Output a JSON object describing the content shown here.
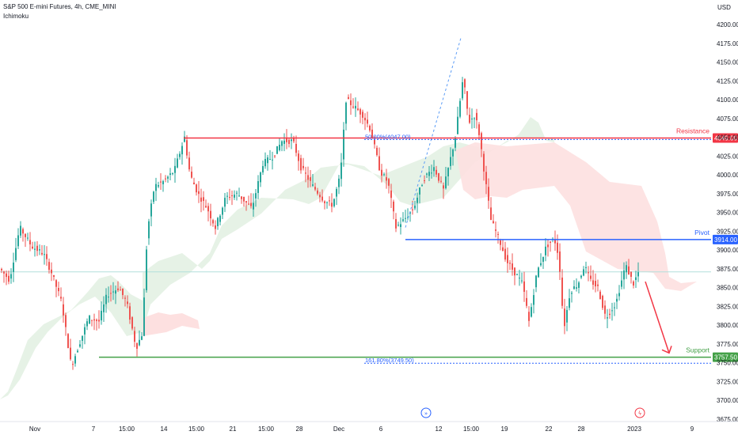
{
  "header": {
    "title": "S&P 500 E-mini Futures, 4h, CME_MINI",
    "indicator": "Ichimoku"
  },
  "chart_data": {
    "type": "candlestick",
    "currency": "USD",
    "ylim": [
      3675,
      4200
    ],
    "y_ticks": [
      3675,
      3700,
      3725,
      3750,
      3775,
      3800,
      3825,
      3850,
      3875,
      3900,
      3925,
      3950,
      3975,
      4000,
      4025,
      4050,
      4075,
      4100,
      4125,
      4150,
      4175,
      4200
    ],
    "y_tick_labels": [
      "3675.00",
      "3700.00",
      "3725.00",
      "3750.00",
      "3775.00",
      "3800.00",
      "3825.00",
      "3850.00",
      "3875.00",
      "3900.00",
      "3925.00",
      "3950.00",
      "3975.00",
      "4000.00",
      "4025.00",
      "4050.00",
      "4075.00",
      "4100.00",
      "4125.00",
      "4150.00",
      "4175.00",
      "4200.00"
    ],
    "x_tick_labels": [
      "Nov",
      "7",
      "15:00",
      "14",
      "15:00",
      "21",
      "15:00",
      "28",
      "Dec",
      "6",
      "12",
      "15:00",
      "19",
      "22",
      "28",
      "2023",
      "9"
    ],
    "levels": [
      {
        "name": "Resistance",
        "value": 4049.0,
        "label": "4049.00",
        "color": "#f23645"
      },
      {
        "name": "Pivot",
        "value": 3914.0,
        "label": "3914.00",
        "color": "#2962ff"
      },
      {
        "name": "Support",
        "value": 3757.5,
        "label": "3757.50",
        "color": "#43a047"
      }
    ],
    "fib_labels": [
      {
        "text": "50.00%(4047.00)",
        "value": 4047.0,
        "color": "#2962ff"
      },
      {
        "text": "161.80%(3749.50)",
        "value": 3749.5,
        "color": "#2962ff"
      }
    ],
    "last_price": 3871,
    "projection_target": 3763,
    "colors": {
      "up": "#26a69a",
      "down": "#ef5350",
      "cloud_bull": "#e3f1e3",
      "cloud_bear": "#fde0e0",
      "bg": "#ffffff"
    },
    "icons": [
      "forward-arrows-icon",
      "lightning-icon"
    ]
  }
}
